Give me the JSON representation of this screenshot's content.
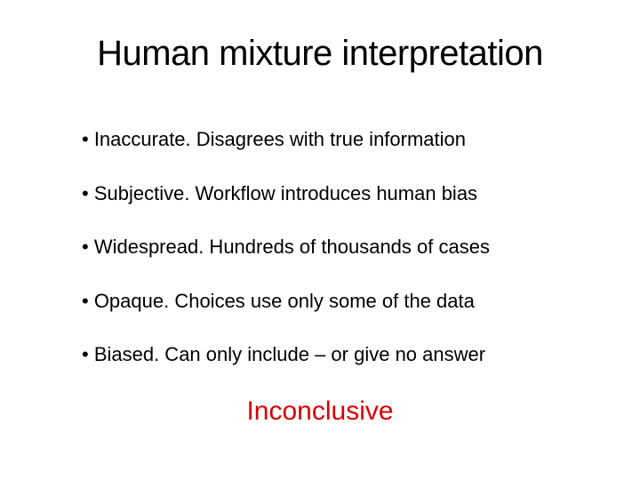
{
  "slide": {
    "title": "Human mixture interpretation",
    "title_color": "#000000",
    "title_fontsize": 40,
    "bullets": [
      "• Inaccurate. Disagrees with true information",
      "• Subjective. Workflow introduces human bias",
      "• Widespread. Hundreds of thousands of cases",
      "• Opaque. Choices use only some of the data",
      "• Biased. Can only include – or give no answer"
    ],
    "bullet_color": "#000000",
    "bullet_fontsize": 22,
    "conclusion": "Inconclusive",
    "conclusion_color": "#d90000",
    "conclusion_fontsize": 30,
    "background_color": "#ffffff"
  }
}
